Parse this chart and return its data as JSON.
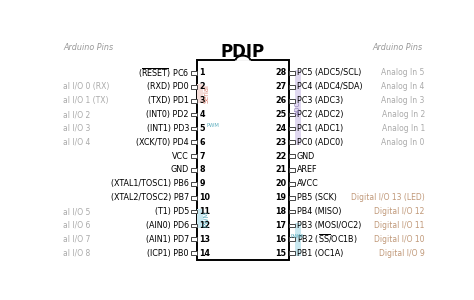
{
  "title": "PDIP",
  "bg_color": "#ffffff",
  "left_pins": [
    {
      "num": 1,
      "label": "$(\\overline{\\rm RESET})$ PC6",
      "arduino": ""
    },
    {
      "num": 2,
      "label": "(RXD) PD0",
      "arduino": "al I/O 0 (RX)"
    },
    {
      "num": 3,
      "label": "(TXD) PD1",
      "arduino": "al I/O 1 (TX)"
    },
    {
      "num": 4,
      "label": "(INT0) PD2",
      "arduino": "al I/O 2"
    },
    {
      "num": 5,
      "label": "(INT1) PD3",
      "arduino": "al I/O 3"
    },
    {
      "num": 6,
      "label": "(XCK/T0) PD4",
      "arduino": "al I/O 4"
    },
    {
      "num": 7,
      "label": "VCC",
      "arduino": ""
    },
    {
      "num": 8,
      "label": "GND",
      "arduino": ""
    },
    {
      "num": 9,
      "label": "(XTAL1/TOSC1) PB6",
      "arduino": ""
    },
    {
      "num": 10,
      "label": "(XTAL2/TOSC2) PB7",
      "arduino": ""
    },
    {
      "num": 11,
      "label": "(T1) PD5",
      "arduino": "al I/O 5"
    },
    {
      "num": 12,
      "label": "(AIN0) PD6",
      "arduino": "al I/O 6"
    },
    {
      "num": 13,
      "label": "(AIN1) PD7",
      "arduino": "al I/O 7"
    },
    {
      "num": 14,
      "label": "(ICP1) PB0",
      "arduino": "al I/O 8"
    }
  ],
  "right_pins": [
    {
      "num": 28,
      "label": "PC5 (ADC5/SCL)",
      "arduino": "Analog In 5"
    },
    {
      "num": 27,
      "label": "PC4 (ADC4/SDA)",
      "arduino": "Analog In 4"
    },
    {
      "num": 26,
      "label": "PC3 (ADC3)",
      "arduino": "Analog In 3"
    },
    {
      "num": 25,
      "label": "PC2 (ADC2)",
      "arduino": "Analog In 2"
    },
    {
      "num": 24,
      "label": "PC1 (ADC1)",
      "arduino": "Analog In 1"
    },
    {
      "num": 23,
      "label": "PC0 (ADC0)",
      "arduino": "Analog In 0"
    },
    {
      "num": 22,
      "label": "GND",
      "arduino": ""
    },
    {
      "num": 21,
      "label": "AREF",
      "arduino": ""
    },
    {
      "num": 20,
      "label": "AVCC",
      "arduino": ""
    },
    {
      "num": 19,
      "label": "PB5 (SCK)",
      "arduino": "Digital I/O 13 (LED)"
    },
    {
      "num": 18,
      "label": "PB4 (MISO)",
      "arduino": "Digital I/O 12"
    },
    {
      "num": 17,
      "label": "PB3 (MOSI/OC2)",
      "arduino": "Digital I/O 11"
    },
    {
      "num": 16,
      "label": "PB2 ($\\overline{\\rm SS}$/OC1B)",
      "arduino": "Digital I/O 10"
    },
    {
      "num": 15,
      "label": "PB1 (OC1A)",
      "arduino": "Digital I/O 9"
    }
  ],
  "serial_color": "#d98070",
  "serial_bg": "#f5ddd9",
  "adc_color": "#9080b8",
  "adc_bg": "#e0d8f0",
  "pwm_color": "#60b0c0",
  "pwm_bg": "#c8e8f0",
  "analog_color": "#aaaaaa",
  "digital_color": "#c09878",
  "left_arduino_color": "#aaaaaa",
  "font_size_title": 12,
  "font_size_pins": 5.8,
  "font_size_arduino": 5.5,
  "font_size_band": 4.8
}
